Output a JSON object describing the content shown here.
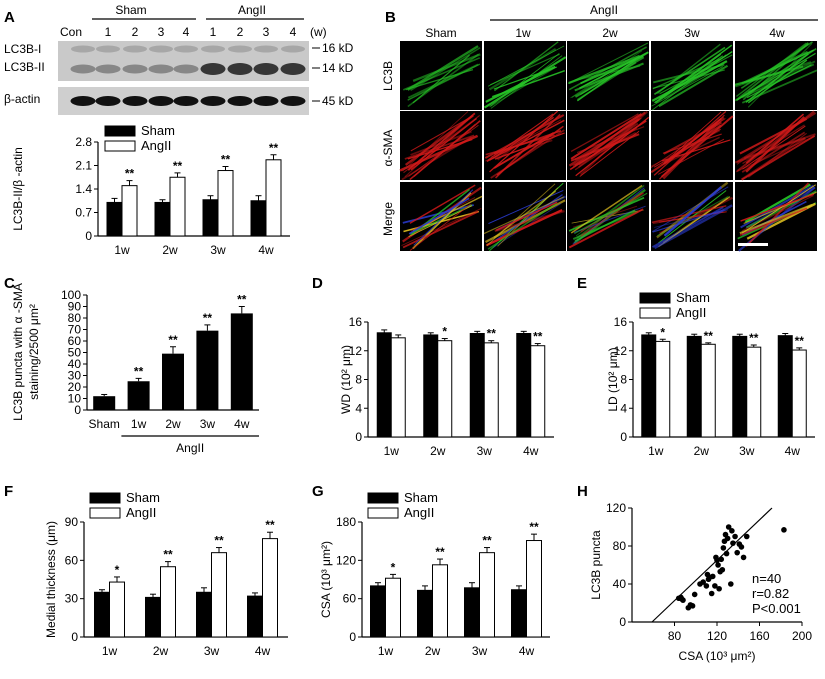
{
  "panel_letters": {
    "A": "A",
    "B": "B",
    "C": "C",
    "D": "D",
    "E": "E",
    "F": "F",
    "G": "G",
    "H": "H"
  },
  "blot": {
    "con_label": "Con",
    "groups": [
      {
        "name": "Sham",
        "lanes": [
          "1",
          "2",
          "3",
          "4"
        ]
      },
      {
        "name": "AngII",
        "lanes": [
          "1",
          "2",
          "3",
          "4"
        ]
      }
    ],
    "unit_label": "(w)",
    "row_labels": {
      "lc3b_i": "LC3B-I",
      "lc3b_ii": "LC3B-II",
      "actin": "β-actin"
    },
    "kd_labels": {
      "kd16": "16 kD",
      "kd14": "14 kD",
      "kd45": "45 kD"
    }
  },
  "micrographs": {
    "header_group": "AngII",
    "columns": [
      "Sham",
      "1w",
      "2w",
      "3w",
      "4w"
    ],
    "rows": [
      "LC3B",
      "α-SMA",
      "Merge"
    ]
  },
  "colors": {
    "sham": "#000000",
    "angii": "#ffffff",
    "green": "#27c427",
    "red": "#d21a1a",
    "blue": "#2a3bd0"
  },
  "chart_data": [
    {
      "id": "A",
      "type": "bar",
      "ylabel": "LC3B-II/β -actin",
      "categories": [
        "1w",
        "2w",
        "3w",
        "4w"
      ],
      "ylim": [
        0,
        2.8
      ],
      "yticks": [
        "0",
        "0.7",
        "1.4",
        "2.1",
        "2.8"
      ],
      "legend": [
        "Sham",
        "AngII"
      ],
      "series": [
        {
          "name": "Sham",
          "values": [
            1.0,
            1.0,
            1.08,
            1.05
          ],
          "err": [
            0.12,
            0.08,
            0.12,
            0.15
          ]
        },
        {
          "name": "AngII",
          "values": [
            1.5,
            1.75,
            1.95,
            2.27
          ],
          "err": [
            0.15,
            0.13,
            0.12,
            0.15
          ]
        }
      ],
      "annotations": [
        "**",
        "**",
        "**",
        "**"
      ]
    },
    {
      "id": "C",
      "type": "bar",
      "ylabel_lines": [
        "LC3B puncta with α -SMA",
        "staining/2500 μm²"
      ],
      "categories": [
        "Sham",
        "1w",
        "2w",
        "3w",
        "4w"
      ],
      "group_label": "AngII",
      "ylim": [
        0,
        100
      ],
      "yticks": [
        "0",
        "10",
        "20",
        "30",
        "40",
        "50",
        "60",
        "70",
        "80",
        "90",
        "100"
      ],
      "values": [
        12,
        25,
        49,
        69,
        84
      ],
      "err": [
        1.5,
        2.5,
        6,
        5,
        6
      ],
      "annotations": [
        "",
        "**",
        "**",
        "**",
        "**"
      ]
    },
    {
      "id": "D",
      "type": "bar",
      "ylabel": "WD (10² μm)",
      "categories": [
        "1w",
        "2w",
        "3w",
        "4w"
      ],
      "ylim": [
        0,
        16
      ],
      "yticks": [
        "0",
        "4",
        "8",
        "12",
        "16"
      ],
      "series": [
        {
          "name": "Sham",
          "values": [
            14.5,
            14.2,
            14.4,
            14.4
          ],
          "err": [
            0.4,
            0.3,
            0.3,
            0.3
          ]
        },
        {
          "name": "AngII",
          "values": [
            13.8,
            13.4,
            13.1,
            12.7
          ],
          "err": [
            0.4,
            0.3,
            0.3,
            0.3
          ]
        }
      ],
      "annotations": [
        "",
        "*",
        "**",
        "**"
      ]
    },
    {
      "id": "E",
      "type": "bar",
      "ylabel": "LD (10² μm)",
      "categories": [
        "1w",
        "2w",
        "3w",
        "4w"
      ],
      "ylim": [
        0,
        16
      ],
      "yticks": [
        "0",
        "4",
        "8",
        "12",
        "16"
      ],
      "legend": [
        "Sham",
        "AngII"
      ],
      "series": [
        {
          "name": "Sham",
          "values": [
            14.2,
            14.0,
            14.0,
            14.1
          ],
          "err": [
            0.3,
            0.3,
            0.3,
            0.3
          ]
        },
        {
          "name": "AngII",
          "values": [
            13.3,
            12.9,
            12.5,
            12.1
          ],
          "err": [
            0.3,
            0.2,
            0.3,
            0.3
          ]
        }
      ],
      "annotations": [
        "*",
        "**",
        "**",
        "**"
      ]
    },
    {
      "id": "F",
      "type": "bar",
      "ylabel": "Medial thickness (μm)",
      "categories": [
        "1w",
        "2w",
        "3w",
        "4w"
      ],
      "ylim": [
        0,
        90
      ],
      "yticks": [
        "0",
        "30",
        "60",
        "90"
      ],
      "legend": [
        "Sham",
        "AngII"
      ],
      "series": [
        {
          "name": "Sham",
          "values": [
            35,
            31,
            35,
            32
          ],
          "err": [
            2,
            2.5,
            3.5,
            2.5
          ]
        },
        {
          "name": "AngII",
          "values": [
            43,
            55,
            66,
            77
          ],
          "err": [
            4,
            4,
            4,
            5
          ]
        }
      ],
      "annotations": [
        "*",
        "**",
        "**",
        "**"
      ]
    },
    {
      "id": "G",
      "type": "bar",
      "ylabel": "CSA (10³ μm²)",
      "categories": [
        "1w",
        "2w",
        "3w",
        "4w"
      ],
      "ylim": [
        0,
        180
      ],
      "yticks": [
        "0",
        "60",
        "120",
        "180"
      ],
      "legend": [
        "Sham",
        "AngII"
      ],
      "series": [
        {
          "name": "Sham",
          "values": [
            80,
            73,
            77,
            74
          ],
          "err": [
            5,
            7,
            8,
            6
          ]
        },
        {
          "name": "AngII",
          "values": [
            92,
            113,
            132,
            151
          ],
          "err": [
            6,
            9,
            8,
            10
          ]
        }
      ],
      "annotations": [
        "*",
        "**",
        "**",
        "**"
      ]
    },
    {
      "id": "H",
      "type": "scatter",
      "xlabel": "CSA (10³ μm²)",
      "ylabel": "LC3B puncta",
      "xlim": [
        40,
        200
      ],
      "ylim": [
        0,
        120
      ],
      "xticks": [
        "80",
        "120",
        "160",
        "200"
      ],
      "yticks": [
        "0",
        "40",
        "80",
        "120"
      ],
      "points": [
        [
          84,
          25
        ],
        [
          86,
          26
        ],
        [
          87,
          24
        ],
        [
          88,
          23
        ],
        [
          93,
          15
        ],
        [
          95,
          18
        ],
        [
          97,
          17
        ],
        [
          99,
          29
        ],
        [
          104,
          40
        ],
        [
          107,
          42
        ],
        [
          110,
          38
        ],
        [
          111,
          50
        ],
        [
          112,
          45
        ],
        [
          113,
          47
        ],
        [
          115,
          30
        ],
        [
          116,
          48
        ],
        [
          118,
          38
        ],
        [
          119,
          68
        ],
        [
          120,
          65
        ],
        [
          121,
          60
        ],
        [
          122,
          35
        ],
        [
          123,
          53
        ],
        [
          124,
          66
        ],
        [
          125,
          55
        ],
        [
          126,
          78
        ],
        [
          127,
          85
        ],
        [
          128,
          92
        ],
        [
          129,
          72
        ],
        [
          130,
          88
        ],
        [
          131,
          100
        ],
        [
          133,
          40
        ],
        [
          134,
          96
        ],
        [
          135,
          83
        ],
        [
          137,
          90
        ],
        [
          139,
          73
        ],
        [
          141,
          82
        ],
        [
          143,
          79
        ],
        [
          145,
          68
        ],
        [
          148,
          90
        ],
        [
          183,
          97
        ]
      ],
      "fit": {
        "x0": 40,
        "y0": -20,
        "x1": 200,
        "y1": 150
      },
      "stats": [
        "n=40",
        "r=0.82",
        "P<0.001"
      ]
    }
  ]
}
